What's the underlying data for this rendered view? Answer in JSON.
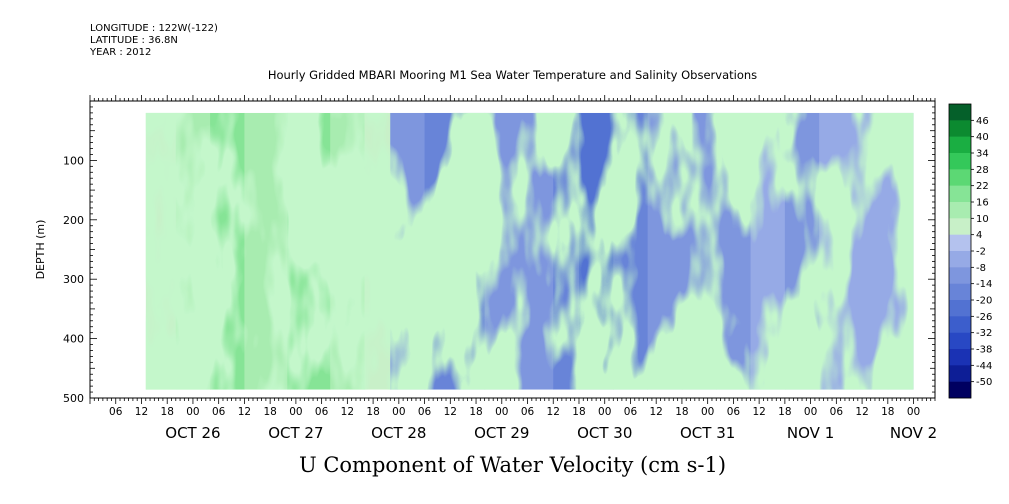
{
  "header": {
    "longitude": "LONGITUDE : 122W(-122)",
    "latitude": "LATITUDE : 36.8N",
    "year": "YEAR : 2012"
  },
  "chart_data": {
    "type": "heatmap",
    "title": "Hourly Gridded MBARI Mooring M1 Sea Water Temperature and Salinity Observations",
    "variable_title": "U Component of Water Velocity (cm s-1)",
    "ylabel": "DEPTH (m)",
    "ylim": [
      500,
      0
    ],
    "yticks": [
      100,
      200,
      300,
      400,
      500
    ],
    "data_depth_range": [
      20,
      486
    ],
    "x_axis": {
      "start": "2012-10-25T00:00",
      "end": "2012-11-02T05:00",
      "data_start": "2012-10-25T13:00",
      "data_end": "2012-11-02T00:00",
      "hour_tick_labels": [
        "06",
        "12",
        "18",
        "00",
        "06",
        "12",
        "18",
        "00",
        "06",
        "12",
        "18",
        "00",
        "06",
        "12",
        "18",
        "00",
        "06",
        "12",
        "18",
        "00",
        "06",
        "12",
        "18",
        "00",
        "06",
        "12",
        "18",
        "00",
        "06",
        "12",
        "18",
        "00"
      ],
      "day_labels": [
        "OCT 26",
        "OCT 27",
        "OCT 28",
        "OCT 29",
        "OCT 30",
        "OCT 31",
        "NOV  1",
        "NOV  2"
      ]
    },
    "colorbar": {
      "levels": [
        -50,
        -44,
        -38,
        -32,
        -26,
        -20,
        -14,
        -8,
        -2,
        4,
        10,
        16,
        22,
        28,
        34,
        40,
        46
      ],
      "labels": [
        "46",
        "40",
        "34",
        "28",
        "22",
        "16",
        "10",
        "4",
        "-2",
        "-8",
        "-14",
        "-20",
        "-26",
        "-32",
        "-38",
        "-44",
        "-50"
      ],
      "palette": [
        "#000060",
        "#0d1e96",
        "#1a32b4",
        "#2848c4",
        "#3c5ecc",
        "#5272d2",
        "#6884d8",
        "#7e96de",
        "#96aae6",
        "#b4c2ee",
        "#c8f0c8",
        "#a8ecb0",
        "#86e496",
        "#5cd874",
        "#34c85a",
        "#1aae42",
        "#0c8a30",
        "#05602a"
      ]
    },
    "time_bands": [
      {
        "t": "2012-10-25T13:00",
        "value": 4
      },
      {
        "t": "2012-10-25T20:00",
        "value": 14
      },
      {
        "t": "2012-10-26T04:00",
        "value": 18
      },
      {
        "t": "2012-10-26T12:00",
        "value": 12
      },
      {
        "t": "2012-10-26T22:00",
        "value": 16
      },
      {
        "t": "2012-10-27T08:00",
        "value": 14
      },
      {
        "t": "2012-10-27T16:00",
        "value": 6
      },
      {
        "t": "2012-10-27T22:00",
        "value": -10
      },
      {
        "t": "2012-10-28T06:00",
        "value": -20
      },
      {
        "t": "2012-10-28T14:00",
        "value": -16
      },
      {
        "t": "2012-10-28T20:00",
        "value": -10
      },
      {
        "t": "2012-10-29T04:00",
        "value": -14
      },
      {
        "t": "2012-10-29T12:00",
        "value": -18
      },
      {
        "t": "2012-10-29T18:00",
        "value": -22
      },
      {
        "t": "2012-10-30T02:00",
        "value": -16
      },
      {
        "t": "2012-10-30T10:00",
        "value": -10
      },
      {
        "t": "2012-10-30T18:00",
        "value": -14
      },
      {
        "t": "2012-10-31T02:00",
        "value": -12
      },
      {
        "t": "2012-10-31T10:00",
        "value": -8
      },
      {
        "t": "2012-10-31T18:00",
        "value": -10
      },
      {
        "t": "2012-11-01T02:00",
        "value": -8
      },
      {
        "t": "2012-11-01T10:00",
        "value": -6
      },
      {
        "t": "2012-11-01T18:00",
        "value": -4
      },
      {
        "t": "2012-11-02T00:00",
        "value": -2
      }
    ]
  }
}
